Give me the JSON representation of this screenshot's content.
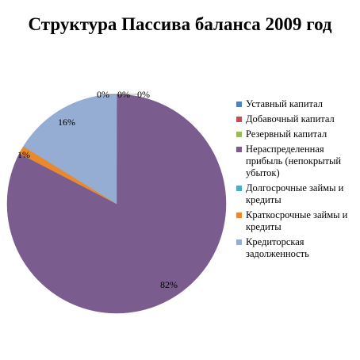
{
  "chart_data": {
    "type": "pie",
    "title": "Структура Пассива баланса 2009 год",
    "start_angle_deg": 0,
    "direction": "clockwise",
    "slices": [
      {
        "label": "Уставный капитал",
        "value": 0.02,
        "data_label": "0%",
        "color": "#4F81BD"
      },
      {
        "label": "Добавочный капитал",
        "value": 0.08,
        "data_label": "0%",
        "color": "#C0504D"
      },
      {
        "label": "Резервный капитал",
        "value": 0.02,
        "data_label": "0%",
        "color": "#9BBB59"
      },
      {
        "label": "Нераспределенная прибыль (непокрытый убыток)",
        "value": 82.5,
        "data_label": "82%",
        "color": "#7A5C8E"
      },
      {
        "label": "Долгосрочные займы и кредиты",
        "value": 0,
        "data_label": "",
        "color": "#4BACC6"
      },
      {
        "label": "Краткосрочные займы и кредиты",
        "value": 1.2,
        "data_label": "1%",
        "color": "#E8892E"
      },
      {
        "label": "Кредиторская задолженность",
        "value": 16.2,
        "data_label": "16%",
        "color": "#95ACD3"
      }
    ],
    "legend_position": "right"
  }
}
